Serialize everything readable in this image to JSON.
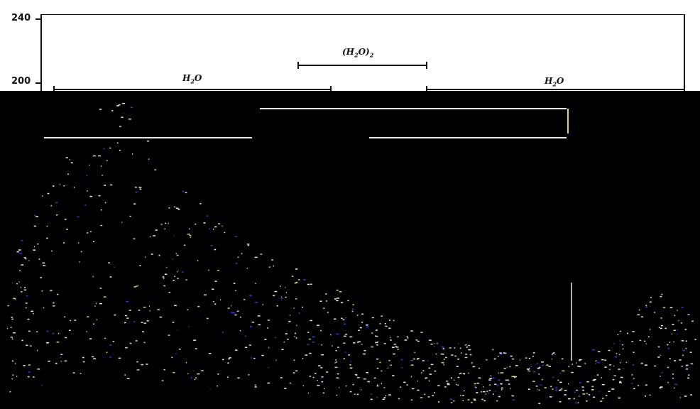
{
  "chart_data": {
    "type": "line",
    "title": "",
    "xlabel": "",
    "ylabel": "",
    "y_ticks": [
      "240",
      "200"
    ],
    "annotations": [
      {
        "label_main": "H",
        "label_sub": "2",
        "label_tail": "O"
      },
      {
        "label_main": "(H",
        "label_sub": "2",
        "label_tail": "O)",
        "label_sub2": "2"
      },
      {
        "label_main": "H",
        "label_sub": "2",
        "label_tail": "O"
      }
    ],
    "colors": {
      "background": "#ffffff",
      "lower_panel": "#000000",
      "trace_light": "#e8e8e8",
      "trace_blue": "#3a3ad8",
      "trace_yellow": "#d8d870"
    }
  }
}
